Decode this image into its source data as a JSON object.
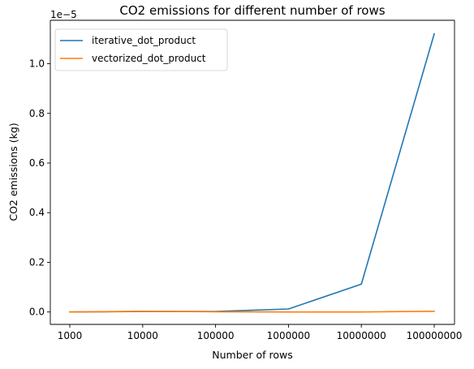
{
  "chart_data": {
    "type": "line",
    "title": "CO2 emissions for different number of rows",
    "xlabel": "Number of rows",
    "ylabel": "CO2 emissions (kg)",
    "y_offset_label": "1e−5",
    "categories": [
      "1000",
      "10000",
      "100000",
      "1000000",
      "10000000",
      "100000000"
    ],
    "ylim": [
      -0.05,
      1.175
    ],
    "yticks": [
      0.0,
      0.2,
      0.4,
      0.6,
      0.8,
      1.0
    ],
    "ytick_labels": [
      "0.0",
      "0.2",
      "0.4",
      "0.6",
      "0.8",
      "1.0"
    ],
    "grid": false,
    "legend_position": "upper-left",
    "series": [
      {
        "name": "iterative_dot_product",
        "color": "#1f77b4",
        "values": [
          0.0,
          0.002,
          0.002,
          0.012,
          0.112,
          1.12
        ]
      },
      {
        "name": "vectorized_dot_product",
        "color": "#ff7f0e",
        "values": [
          0.0,
          0.003,
          0.001,
          0.0,
          0.0,
          0.003
        ]
      }
    ]
  }
}
